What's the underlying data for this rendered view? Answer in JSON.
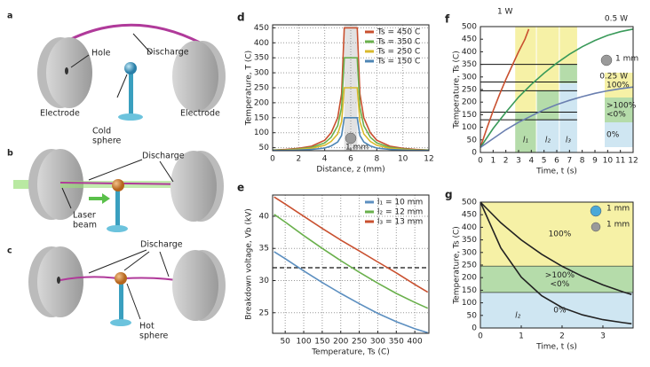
{
  "illustrations": {
    "a": {
      "letter": "a",
      "hole": "Hole",
      "discharge": "Discharge",
      "electrode_left": "Electrode",
      "electrode_right": "Electrode",
      "sphere": [
        "Cold",
        "sphere"
      ]
    },
    "b": {
      "letter": "b",
      "discharge": "Discharge",
      "laser": [
        "Laser",
        "beam"
      ]
    },
    "c": {
      "letter": "c",
      "discharge": "Discharge",
      "sphere": [
        "Hot",
        "sphere"
      ]
    }
  },
  "chart_data": [
    {
      "panel": "d",
      "type": "line",
      "xlabel": "Distance, z (mm)",
      "ylabel": "Temperature, T (C)",
      "xlim": [
        0,
        12
      ],
      "xticks": [
        0,
        2,
        4,
        6,
        8,
        10,
        12
      ],
      "ylim": [
        40,
        460
      ],
      "yticks": [
        50,
        100,
        150,
        200,
        250,
        300,
        350,
        400,
        450
      ],
      "grid": true,
      "legend": "upper right",
      "shade": [
        5.5,
        6.5
      ],
      "sphere_label": "1 mm",
      "x": [
        0,
        1,
        2,
        3,
        4,
        4.5,
        5,
        5.3,
        5.5,
        6,
        6.5,
        6.7,
        7,
        7.5,
        8,
        9,
        10,
        11,
        12
      ],
      "series": [
        {
          "name": "Ts = 450 C",
          "color": "#c9502f",
          "values": [
            42,
            44,
            48,
            55,
            75,
            100,
            150,
            230,
            450,
            450,
            450,
            230,
            150,
            100,
            75,
            55,
            48,
            44,
            42
          ]
        },
        {
          "name": "Ts = 350 C",
          "color": "#6ab04c",
          "values": [
            42,
            43,
            46,
            51,
            66,
            85,
            123,
            184,
            350,
            350,
            350,
            184,
            123,
            85,
            66,
            51,
            46,
            43,
            42
          ]
        },
        {
          "name": "Ts = 250 C",
          "color": "#d8b92c",
          "values": [
            41,
            42,
            44,
            48,
            58,
            71,
            96,
            137,
            250,
            250,
            250,
            137,
            96,
            71,
            58,
            48,
            44,
            42,
            41
          ]
        },
        {
          "name": "Ts = 150 C",
          "color": "#4e86b5",
          "values": [
            41,
            41,
            42,
            44,
            49,
            56,
            69,
            91,
            150,
            150,
            150,
            91,
            69,
            56,
            49,
            44,
            42,
            41,
            41
          ]
        }
      ]
    },
    {
      "panel": "e",
      "type": "line",
      "xlabel": "Temperature, Ts (C)",
      "ylabel": "Breakdown voltage, Vb (kV)",
      "xlim": [
        16,
        438
      ],
      "xticks": [
        50,
        100,
        150,
        200,
        250,
        300,
        350,
        400
      ],
      "ylim": [
        21.8,
        43.3
      ],
      "yticks": [
        25,
        30,
        35,
        40
      ],
      "grid": true,
      "legend": "upper right",
      "hline": 32,
      "x": [
        20,
        50,
        100,
        150,
        200,
        250,
        300,
        350,
        400,
        435
      ],
      "series": [
        {
          "name": "l₁ = 10 mm",
          "color": "#5c8fc0",
          "values": [
            34.5,
            33.4,
            31.5,
            29.7,
            28,
            26.4,
            24.9,
            23.6,
            22.5,
            21.9
          ]
        },
        {
          "name": "l₂ = 12 mm",
          "color": "#6ab04c",
          "values": [
            40.3,
            39.1,
            37,
            35,
            33.1,
            31.3,
            29.6,
            28,
            26.6,
            25.7
          ]
        },
        {
          "name": "l₃ = 13 mm",
          "color": "#c9502f",
          "values": [
            43,
            41.9,
            40,
            38.1,
            36.3,
            34.6,
            32.9,
            31.2,
            29.4,
            28.2
          ]
        }
      ]
    },
    {
      "panel": "f",
      "type": "line",
      "xlabel": "Time, t (s)",
      "ylabel": "Temperature, Ts (C)",
      "xlim": [
        0,
        12
      ],
      "xticks": [
        0,
        1,
        2,
        3,
        4,
        5,
        6,
        7,
        8,
        9,
        10,
        11,
        12
      ],
      "ylim": [
        0,
        500
      ],
      "yticks": [
        0,
        50,
        100,
        150,
        200,
        250,
        300,
        350,
        400,
        450,
        500
      ],
      "grid": false,
      "legend": "labels",
      "sphere_label": "1 mm",
      "region_colors": [
        "#cfe6f2",
        "#b5dcaa",
        "#f6f1a6"
      ],
      "regions": [
        {
          "label": "l₁",
          "x": [
            2.7,
            4.4
          ],
          "green": [
            0,
            160
          ]
        },
        {
          "label": "l₂",
          "x": [
            4.4,
            6.2
          ],
          "green": [
            130,
            245
          ]
        },
        {
          "label": "l₃",
          "x": [
            6.2,
            7.6
          ],
          "green": [
            275,
            350
          ]
        }
      ],
      "hlines": [
        350,
        280,
        245,
        160,
        130
      ],
      "key": [
        {
          "label": [
            "100%"
          ],
          "color": "#f6f1a6"
        },
        {
          "label": [
            ">100%",
            "<0%"
          ],
          "color": "#b5dcaa"
        },
        {
          "label": [
            "0%"
          ],
          "color": "#cfe6f2"
        }
      ],
      "series": [
        {
          "name": "1 W",
          "color": "#c9502f",
          "x": [
            0,
            0.5,
            1,
            1.5,
            2,
            2.5,
            3,
            3.5,
            3.8
          ],
          "values": [
            20,
            95,
            165,
            230,
            290,
            345,
            400,
            450,
            490
          ]
        },
        {
          "name": "0.5 W",
          "color": "#3a9a5a",
          "x": [
            0,
            1,
            2,
            3,
            4,
            5,
            6,
            7,
            8,
            9,
            10,
            11,
            12
          ],
          "values": [
            20,
            95,
            160,
            220,
            270,
            315,
            355,
            390,
            420,
            445,
            465,
            480,
            490
          ]
        },
        {
          "name": "0.25 W",
          "color": "#6a7fb0",
          "x": [
            0,
            1,
            2,
            3,
            4,
            5,
            6,
            7,
            8,
            9,
            10,
            11,
            12
          ],
          "values": [
            20,
            55,
            90,
            120,
            145,
            170,
            190,
            207,
            222,
            235,
            245,
            253,
            260
          ]
        }
      ]
    },
    {
      "panel": "g",
      "type": "line",
      "xlabel": "Time, t (s)",
      "ylabel": "Temperature, Ts (C)",
      "xlim": [
        0,
        3.74
      ],
      "xticks": [
        0,
        1,
        2,
        3
      ],
      "ylim": [
        0,
        500
      ],
      "yticks": [
        0,
        50,
        100,
        150,
        200,
        250,
        300,
        350,
        400,
        450,
        500
      ],
      "grid": false,
      "legend": "spheres",
      "region_label": "l₂",
      "bands": [
        {
          "from": 245,
          "to": 500,
          "color": "#f6f1a6",
          "label": [
            "100%"
          ]
        },
        {
          "from": 140,
          "to": 245,
          "color": "#b5dcaa",
          "label": [
            ">100%",
            "<0%"
          ]
        },
        {
          "from": 0,
          "to": 140,
          "color": "#cfe6f2",
          "label": [
            "0%"
          ]
        }
      ],
      "x": [
        0,
        0.5,
        1,
        1.5,
        2,
        2.5,
        3,
        3.5,
        3.7
      ],
      "series": [
        {
          "name": "1 mm",
          "color": "#222222",
          "sphere": "#4aa8d8",
          "values": [
            500,
            418,
            350,
            293,
            245,
            205,
            171,
            143,
            133
          ]
        },
        {
          "name": "1 mm",
          "color": "#222222",
          "sphere": "#9a9a9a",
          "values": [
            500,
            318,
            202,
            128,
            81,
            52,
            33,
            21,
            17
          ]
        }
      ]
    }
  ]
}
